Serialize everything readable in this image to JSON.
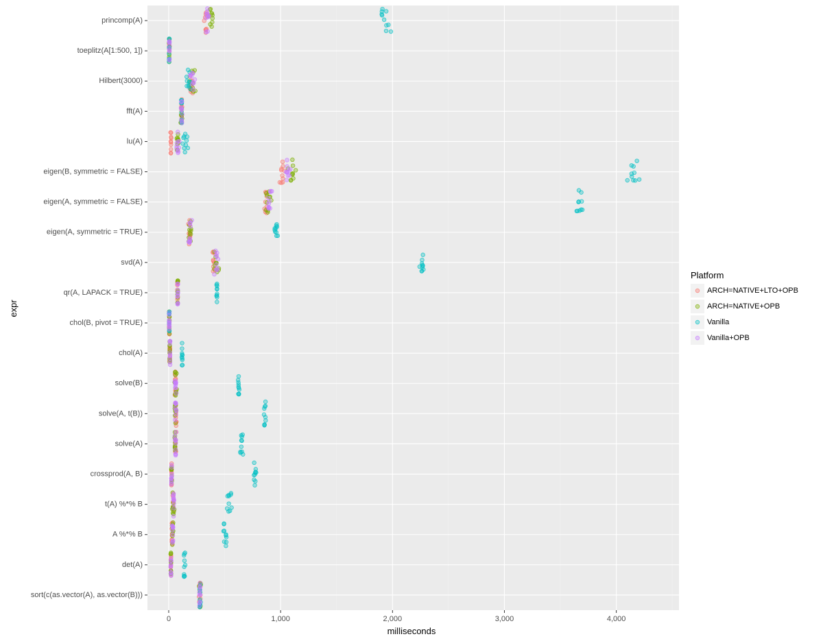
{
  "chart_data": {
    "type": "scatter",
    "subtype": "jitter",
    "title": "",
    "xlabel": "milliseconds",
    "ylabel": "expr",
    "xlim": [
      -190,
      4560
    ],
    "x_ticks": [
      0,
      1000,
      2000,
      3000,
      4000
    ],
    "x_tick_labels": [
      "0",
      "1,000",
      "2,000",
      "3,000",
      "4,000"
    ],
    "grid": true,
    "legend": {
      "title": "Platform",
      "position": "right"
    },
    "categories": [
      "princomp(A)",
      "toeplitz(A[1:500, 1])",
      "Hilbert(3000)",
      "fft(A)",
      "lu(A)",
      "eigen(B, symmetric = FALSE)",
      "eigen(A, symmetric = FALSE)",
      "eigen(A, symmetric = TRUE)",
      "svd(A)",
      "qr(A, LAPACK = TRUE)",
      "chol(B, pivot = TRUE)",
      "chol(A)",
      "solve(B)",
      "solve(A, t(B))",
      "solve(A)",
      "crossprod(A, B)",
      "t(A) %*% B",
      "A %*% B",
      "det(A)",
      "sort(c(as.vector(A), as.vector(B)))"
    ],
    "series": [
      {
        "name": "ARCH=NATIVE+LTO+OPB",
        "color": "#F8766D",
        "values": [
          330,
          5,
          200,
          115,
          20,
          1010,
          870,
          185,
          400,
          80,
          5,
          10,
          60,
          65,
          60,
          25,
          40,
          30,
          20,
          280
        ],
        "spread": [
          30,
          3,
          25,
          10,
          5,
          40,
          20,
          15,
          20,
          5,
          3,
          3,
          8,
          8,
          8,
          4,
          6,
          5,
          4,
          10
        ]
      },
      {
        "name": "ARCH=NATIVE+OPB",
        "color": "#7CAE00",
        "values": [
          380,
          5,
          210,
          115,
          80,
          1100,
          890,
          190,
          430,
          80,
          5,
          10,
          60,
          60,
          55,
          25,
          40,
          35,
          20,
          280
        ],
        "spread": [
          40,
          3,
          40,
          10,
          20,
          60,
          30,
          20,
          40,
          5,
          3,
          3,
          15,
          15,
          10,
          4,
          15,
          10,
          4,
          12
        ]
      },
      {
        "name": "Vanilla",
        "color": "#00BFC4",
        "values": [
          1930,
          5,
          170,
          115,
          150,
          4150,
          3670,
          960,
          2270,
          430,
          5,
          120,
          625,
          860,
          650,
          770,
          540,
          500,
          140,
          280
        ],
        "spread": [
          80,
          3,
          50,
          8,
          40,
          90,
          40,
          25,
          40,
          6,
          3,
          6,
          8,
          10,
          25,
          25,
          30,
          30,
          15,
          10
        ]
      },
      {
        "name": "Vanilla+OPB",
        "color": "#C77CFF",
        "values": [
          340,
          5,
          210,
          115,
          80,
          1060,
          900,
          190,
          420,
          80,
          5,
          12,
          60,
          62,
          60,
          25,
          45,
          35,
          20,
          280
        ],
        "spread": [
          30,
          3,
          40,
          10,
          20,
          40,
          30,
          20,
          30,
          5,
          3,
          3,
          10,
          10,
          10,
          4,
          8,
          6,
          4,
          10
        ]
      }
    ]
  }
}
